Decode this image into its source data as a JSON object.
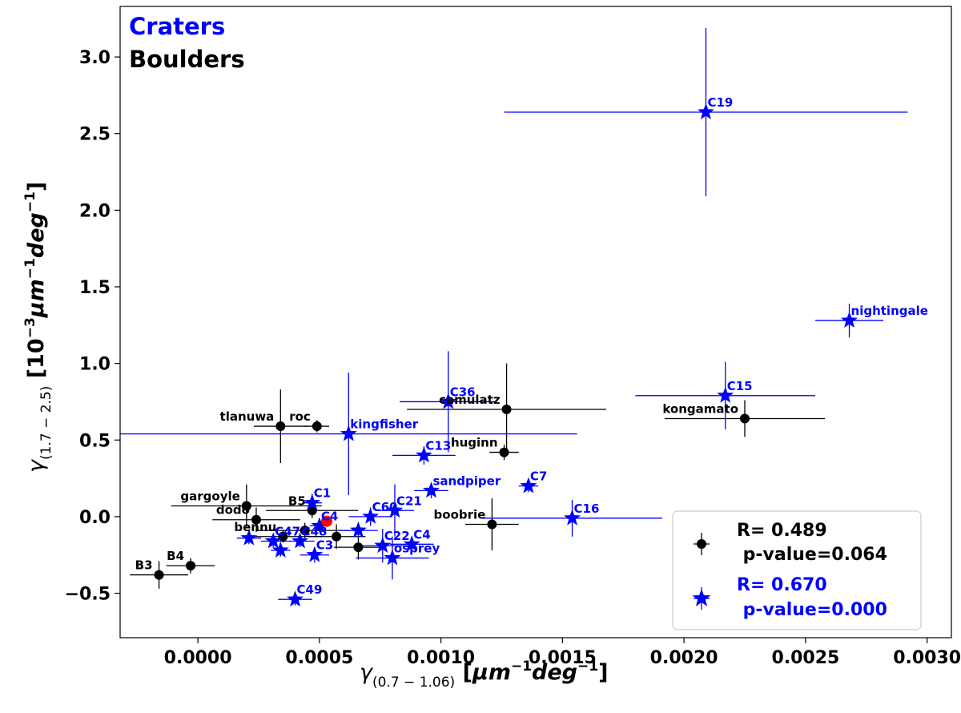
{
  "chart_data": {
    "type": "scatter",
    "xlabel": "γ(0.7 − 1.06) [μm⁻¹deg⁻¹]",
    "ylabel": "γ(1.7 − 2.5) [10⁻³μm⁻¹deg⁻¹]",
    "xlim": [
      -0.00032,
      0.0031
    ],
    "ylim": [
      -0.79,
      3.33
    ],
    "xticks": [
      {
        "v": 0.0,
        "label": "0.0000"
      },
      {
        "v": 0.0005,
        "label": "0.0005"
      },
      {
        "v": 0.001,
        "label": "0.0010"
      },
      {
        "v": 0.0015,
        "label": "0.0015"
      },
      {
        "v": 0.002,
        "label": "0.0020"
      },
      {
        "v": 0.0025,
        "label": "0.0025"
      },
      {
        "v": 0.003,
        "label": "0.0030"
      }
    ],
    "yticks": [
      {
        "v": -0.5,
        "label": "−0.5"
      },
      {
        "v": 0.0,
        "label": "0.0"
      },
      {
        "v": 0.5,
        "label": "0.5"
      },
      {
        "v": 1.0,
        "label": "1.0"
      },
      {
        "v": 1.5,
        "label": "1.5"
      },
      {
        "v": 2.0,
        "label": "2.0"
      },
      {
        "v": 2.5,
        "label": "2.5"
      },
      {
        "v": 3.0,
        "label": "3.0"
      }
    ],
    "title_lines": [
      {
        "text": "Craters",
        "color": "#0000ff"
      },
      {
        "text": "Boulders",
        "color": "#000000"
      }
    ],
    "legend": {
      "position": "lower right",
      "entries": [
        {
          "series": "boulders",
          "line1": "R= 0.489",
          "line2": " p-value=0.064",
          "color": "#000000"
        },
        {
          "series": "craters",
          "line1": "R= 0.670",
          "line2": " p-value=0.000",
          "color": "#0000ff"
        }
      ]
    },
    "series": [
      {
        "key": "boulders",
        "marker": "circle",
        "color": "#000000",
        "points": [
          {
            "label": "tlanuwa",
            "x": 0.00034,
            "y": 0.59,
            "xerr": 0.00011,
            "yerr": 0.24
          },
          {
            "label": "roc",
            "x": 0.00049,
            "y": 0.59,
            "xerr": 5e-05,
            "yerr": 0.04
          },
          {
            "label": "camulatz",
            "x": 0.00127,
            "y": 0.7,
            "xerr": 0.00041,
            "yerr": 0.3
          },
          {
            "label": "kongamato",
            "x": 0.00225,
            "y": 0.64,
            "xerr": 0.00033,
            "yerr": 0.12
          },
          {
            "label": "huginn",
            "x": 0.00126,
            "y": 0.42,
            "xerr": 6e-05,
            "yerr": 0.05
          },
          {
            "label": "boobrie",
            "x": 0.00121,
            "y": -0.05,
            "xerr": 0.00011,
            "yerr": 0.17
          },
          {
            "label": "gargoyle",
            "x": 0.0002,
            "y": 0.07,
            "xerr": 0.00031,
            "yerr": 0.14
          },
          {
            "label": "dodo",
            "x": 0.00024,
            "y": -0.02,
            "xerr": 0.00018,
            "yerr": 0.08
          },
          {
            "label": "B5",
            "x": 0.00047,
            "y": 0.04,
            "xerr": 0.00019,
            "yerr": 0.05
          },
          {
            "label": "bennu",
            "x": 0.00035,
            "y": -0.13,
            "xerr": 0.00016,
            "yerr": 0.04
          },
          {
            "label": "",
            "x": 0.00044,
            "y": -0.09,
            "xerr": 0.0002,
            "yerr": 0.05
          },
          {
            "label": "",
            "x": 0.00057,
            "y": -0.13,
            "xerr": 0.00012,
            "yerr": 0.08
          },
          {
            "label": "",
            "x": 0.00066,
            "y": -0.2,
            "xerr": 0.0001,
            "yerr": 0.08
          },
          {
            "label": "B3",
            "x": -0.00016,
            "y": -0.38,
            "xerr": 0.00012,
            "yerr": 0.09
          },
          {
            "label": "B4",
            "x": -3e-05,
            "y": -0.32,
            "xerr": 0.0001,
            "yerr": 0.05
          }
        ]
      },
      {
        "key": "craters",
        "marker": "star",
        "color": "#0000ff",
        "points": [
          {
            "label": "C19",
            "x": 0.00209,
            "y": 2.64,
            "xerr": 0.00083,
            "yerr": 0.55
          },
          {
            "label": "nightingale",
            "x": 0.00268,
            "y": 1.28,
            "xerr": 0.00014,
            "yerr": 0.11
          },
          {
            "label": "C15",
            "x": 0.00217,
            "y": 0.79,
            "xerr": 0.00037,
            "yerr": 0.22
          },
          {
            "label": "C36",
            "x": 0.00103,
            "y": 0.75,
            "xerr": 0.0002,
            "yerr": 0.33
          },
          {
            "label": "kingfisher",
            "x": 0.00062,
            "y": 0.54,
            "xerr": 0.00094,
            "yerr": 0.4
          },
          {
            "label": "C13",
            "x": 0.00093,
            "y": 0.4,
            "xerr": 0.00013,
            "yerr": 0.06
          },
          {
            "label": "sandpiper",
            "x": 0.00096,
            "y": 0.17,
            "xerr": 7e-05,
            "yerr": 0.05
          },
          {
            "label": "C7",
            "x": 0.00136,
            "y": 0.2,
            "xerr": 4e-05,
            "yerr": 0.04
          },
          {
            "label": "C16",
            "x": 0.00154,
            "y": -0.01,
            "xerr": 0.00037,
            "yerr": 0.12
          },
          {
            "label": "C1",
            "x": 0.00047,
            "y": 0.09,
            "xerr": 4e-05,
            "yerr": 0.06
          },
          {
            "label": "C21",
            "x": 0.00081,
            "y": 0.04,
            "xerr": 8e-05,
            "yerr": 0.17
          },
          {
            "label": "C60",
            "x": 0.00071,
            "y": 0.0,
            "xerr": 9e-05,
            "yerr": 0.06
          },
          {
            "label": "C4",
            "x": 0.00088,
            "y": -0.18,
            "xerr": 9e-05,
            "yerr": 0.05
          },
          {
            "label": "C22",
            "x": 0.00076,
            "y": -0.19,
            "xerr": 0.00012,
            "yerr": 0.11
          },
          {
            "label": "osprey",
            "x": 0.0008,
            "y": -0.27,
            "xerr": 0.00015,
            "yerr": 0.14
          },
          {
            "label": "C3",
            "x": 0.00048,
            "y": -0.25,
            "xerr": 6e-05,
            "yerr": 0.05
          },
          {
            "label": "C49",
            "x": 0.0004,
            "y": -0.54,
            "xerr": 7e-05,
            "yerr": 0.04
          },
          {
            "label": "C47",
            "x": 0.00031,
            "y": -0.16,
            "xerr": 5e-05,
            "yerr": 0.04
          },
          {
            "label": "C48",
            "x": 0.00042,
            "y": -0.16,
            "xerr": 6e-05,
            "yerr": 0.04
          },
          {
            "label": "C4",
            "x": 0.0005,
            "y": -0.06,
            "xerr": 4e-05,
            "yerr": 0.04
          },
          {
            "label": "",
            "x": 0.00021,
            "y": -0.14,
            "xerr": 5e-05,
            "yerr": 0.04
          },
          {
            "label": "",
            "x": 0.00034,
            "y": -0.22,
            "xerr": 4e-05,
            "yerr": 0.04
          },
          {
            "label": "",
            "x": 0.00066,
            "y": -0.09,
            "xerr": 8e-05,
            "yerr": 0.05
          }
        ]
      }
    ],
    "highlight_point": {
      "x": 0.00053,
      "y": -0.03,
      "color": "#ff0000"
    }
  }
}
